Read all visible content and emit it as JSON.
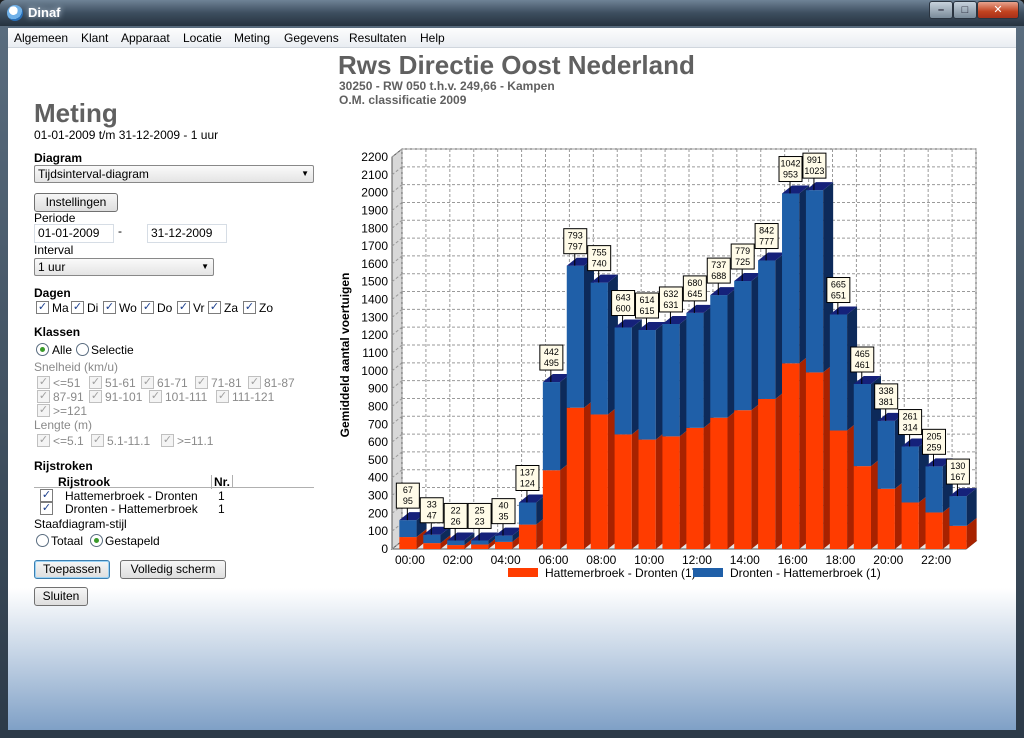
{
  "window": {
    "title": "Dinaf",
    "minimize": "–",
    "maximize": "□",
    "close": "✕"
  },
  "menu": [
    "Algemeen",
    "Klant",
    "Apparaat",
    "Locatie",
    "Meting",
    "Gegevens",
    "Resultaten",
    "Help"
  ],
  "header": {
    "title": "Rws Directie Oost Nederland",
    "subtitle": "30250  -  RW 050 t.h.v. 249,66  -  Kampen",
    "classification": "O.M. classificatie 2009"
  },
  "left": {
    "heading": "Meting",
    "range": "01-01-2009  t/m  31-12-2009  -  1 uur",
    "diagram_label": "Diagram",
    "diagram_value": "Tijdsinterval-diagram",
    "settings_button": "Instellingen",
    "period_label": "Periode",
    "period_from": "01-01-2009",
    "period_sep": "-",
    "period_to": "31-12-2009",
    "interval_label": "Interval",
    "interval_value": "1 uur",
    "days_label": "Dagen",
    "days": [
      "Ma",
      "Di",
      "Wo",
      "Do",
      "Vr",
      "Za",
      "Zo"
    ],
    "classes_label": "Klassen",
    "class_all": "Alle",
    "class_selection": "Selectie",
    "speed_label": "Snelheid (km/u)",
    "speed_row1": [
      "<=51",
      "51-61",
      "61-71",
      "71-81",
      "81-87"
    ],
    "speed_row2": [
      "87-91",
      "91-101",
      "101-111",
      "111-121"
    ],
    "speed_row3": [
      ">=121"
    ],
    "length_label": "Lengte (m)",
    "length_values": [
      "<=5.1",
      "5.1-11.1",
      ">=11.1"
    ],
    "lanes_label": "Rijstroken",
    "lanes_col_lane": "Rijstrook",
    "lanes_col_nr": "Nr.",
    "lanes": [
      {
        "name": "Hattemerbroek - Dronten",
        "nr": "1"
      },
      {
        "name": "Dronten - Hattemerbroek",
        "nr": "1"
      }
    ],
    "style_label": "Staafdiagram-stijl",
    "style_total": "Totaal",
    "style_stacked": "Gestapeld",
    "apply_button": "Toepassen",
    "fullscreen_button": "Volledig scherm",
    "close_button": "Sluiten"
  },
  "colors": {
    "series1": "#ff3c00",
    "series2": "#1f5fa8",
    "top": "#15217a",
    "grid": "#9a9a9a"
  },
  "chart_data": {
    "type": "bar",
    "stacked": true,
    "ylabel": "Gemiddeld aantal voertuigen",
    "ylim": [
      0,
      2200
    ],
    "yticks": [
      0,
      100,
      200,
      300,
      400,
      500,
      600,
      700,
      800,
      900,
      1000,
      1100,
      1200,
      1300,
      1400,
      1500,
      1600,
      1700,
      1800,
      1900,
      2000,
      2100,
      2200
    ],
    "x_tick_labels": [
      "00:00",
      "02:00",
      "04:00",
      "06:00",
      "08:00",
      "10:00",
      "12:00",
      "14:00",
      "16:00",
      "18:00",
      "20:00",
      "22:00"
    ],
    "grid": true,
    "legend_position": "bottom",
    "series": [
      {
        "name": "Hattemerbroek - Dronten (1)",
        "values": [
          67,
          33,
          22,
          25,
          40,
          137,
          442,
          793,
          755,
          643,
          614,
          632,
          680,
          737,
          779,
          842,
          1042,
          991,
          665,
          465,
          338,
          261,
          205,
          130
        ]
      },
      {
        "name": "Dronten - Hattemerbroek (1)",
        "values": [
          95,
          47,
          26,
          23,
          35,
          124,
          495,
          797,
          740,
          600,
          615,
          631,
          645,
          688,
          725,
          777,
          953,
          1023,
          651,
          461,
          381,
          314,
          259,
          167
        ]
      }
    ]
  }
}
